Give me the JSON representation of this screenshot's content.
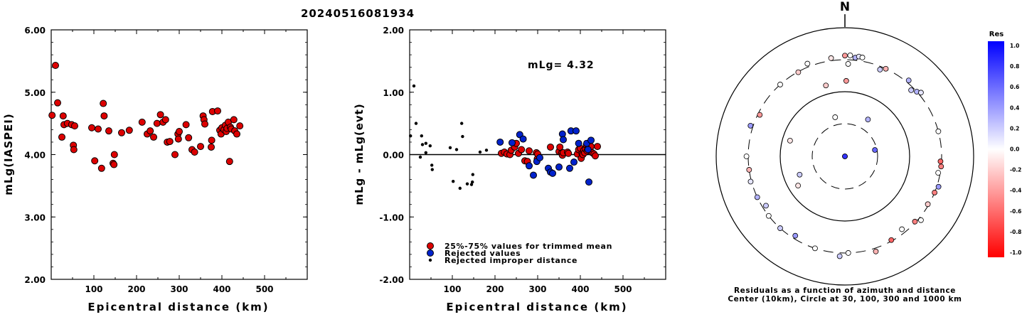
{
  "title": "20240516081934",
  "colors": {
    "red_dot": "#dd0000",
    "blue_dot": "#0022cc",
    "black_dot": "#000000"
  },
  "chart_data": [
    {
      "type": "scatter",
      "id": "left",
      "ylabel": "mLg(IASPEI)",
      "xlabel": "Epicentral distance (km)",
      "xlim": [
        0,
        600
      ],
      "ylim": [
        2.0,
        6.0
      ],
      "xticks": [
        "100",
        "200",
        "300",
        "400",
        "500"
      ],
      "yticks": [
        "2.00",
        "3.00",
        "4.00",
        "5.00",
        "6.00"
      ],
      "points": [
        [
          2,
          4.63
        ],
        [
          10,
          5.43
        ],
        [
          15,
          4.83
        ],
        [
          25,
          4.28
        ],
        [
          28,
          4.62
        ],
        [
          30,
          4.48
        ],
        [
          38,
          4.5
        ],
        [
          48,
          4.48
        ],
        [
          52,
          4.15
        ],
        [
          53,
          4.08
        ],
        [
          55,
          4.46
        ],
        [
          95,
          4.43
        ],
        [
          102,
          3.9
        ],
        [
          110,
          4.41
        ],
        [
          118,
          3.78
        ],
        [
          122,
          4.82
        ],
        [
          124,
          4.62
        ],
        [
          135,
          4.38
        ],
        [
          145,
          3.86
        ],
        [
          147,
          3.84
        ],
        [
          148,
          4.0
        ],
        [
          165,
          4.35
        ],
        [
          183,
          4.39
        ],
        [
          213,
          4.52
        ],
        [
          225,
          4.33
        ],
        [
          232,
          4.38
        ],
        [
          240,
          4.28
        ],
        [
          248,
          4.5
        ],
        [
          256,
          4.64
        ],
        [
          262,
          4.52
        ],
        [
          268,
          4.56
        ],
        [
          272,
          4.2
        ],
        [
          278,
          4.21
        ],
        [
          290,
          4.0
        ],
        [
          297,
          4.33
        ],
        [
          298,
          4.25
        ],
        [
          300,
          4.37
        ],
        [
          316,
          4.48
        ],
        [
          322,
          4.27
        ],
        [
          330,
          4.08
        ],
        [
          336,
          4.04
        ],
        [
          350,
          4.13
        ],
        [
          356,
          4.62
        ],
        [
          358,
          4.56
        ],
        [
          360,
          4.49
        ],
        [
          375,
          4.12
        ],
        [
          376,
          4.23
        ],
        [
          378,
          4.69
        ],
        [
          390,
          4.7
        ],
        [
          395,
          4.39
        ],
        [
          398,
          4.33
        ],
        [
          400,
          4.43
        ],
        [
          405,
          4.4
        ],
        [
          408,
          4.47
        ],
        [
          410,
          4.37
        ],
        [
          412,
          4.42
        ],
        [
          415,
          4.52
        ],
        [
          418,
          3.89
        ],
        [
          420,
          4.44
        ],
        [
          422,
          4.41
        ],
        [
          428,
          4.56
        ],
        [
          430,
          4.38
        ],
        [
          435,
          4.33
        ],
        [
          442,
          4.46
        ]
      ]
    },
    {
      "type": "scatter",
      "id": "middle",
      "ylabel": "mLg - mLg(evt)",
      "xlabel": "Epicentral distance (km)",
      "xlim": [
        0,
        600
      ],
      "ylim": [
        -2.0,
        2.0
      ],
      "xticks": [
        "100",
        "200",
        "300",
        "400",
        "500"
      ],
      "yticks": [
        "-2.00",
        "-1.00",
        "0.00",
        "1.00",
        "2.00"
      ],
      "annotation": "mLg= 4.32",
      "legend": [
        {
          "label": "25%-75% values for trimmed mean",
          "color": "red"
        },
        {
          "label": "Rejected values",
          "color": "blue"
        },
        {
          "label": "Rejected improper distance",
          "color": "black"
        }
      ],
      "red": [
        [
          215,
          0.02
        ],
        [
          222,
          0.04
        ],
        [
          228,
          0.01
        ],
        [
          235,
          0.0
        ],
        [
          238,
          0.07
        ],
        [
          246,
          0.12
        ],
        [
          250,
          0.18
        ],
        [
          255,
          0.02
        ],
        [
          262,
          0.08
        ],
        [
          270,
          -0.1
        ],
        [
          276,
          -0.11
        ],
        [
          280,
          0.06
        ],
        [
          297,
          0.03
        ],
        [
          299,
          -0.07
        ],
        [
          300,
          0.01
        ],
        [
          330,
          0.12
        ],
        [
          350,
          0.05
        ],
        [
          352,
          0.12
        ],
        [
          356,
          0.02
        ],
        [
          358,
          -0.01
        ],
        [
          360,
          0.03
        ],
        [
          370,
          0.04
        ],
        [
          372,
          0.02
        ],
        [
          393,
          0.01
        ],
        [
          396,
          0.08
        ],
        [
          400,
          0.1
        ],
        [
          402,
          -0.06
        ],
        [
          404,
          0.02
        ],
        [
          406,
          0.0
        ],
        [
          408,
          0.07
        ],
        [
          410,
          0.03
        ],
        [
          412,
          0.09
        ],
        [
          414,
          0.15
        ],
        [
          416,
          0.06
        ],
        [
          418,
          0.11
        ],
        [
          420,
          0.08
        ],
        [
          425,
          0.13
        ],
        [
          428,
          0.03
        ],
        [
          432,
          0.01
        ],
        [
          435,
          -0.02
        ],
        [
          440,
          0.13
        ]
      ],
      "blue": [
        [
          212,
          0.2
        ],
        [
          240,
          0.19
        ],
        [
          258,
          0.32
        ],
        [
          266,
          0.25
        ],
        [
          280,
          -0.18
        ],
        [
          290,
          -0.33
        ],
        [
          298,
          -0.11
        ],
        [
          305,
          -0.05
        ],
        [
          325,
          -0.22
        ],
        [
          330,
          -0.28
        ],
        [
          335,
          -0.3
        ],
        [
          350,
          -0.2
        ],
        [
          358,
          0.33
        ],
        [
          360,
          0.24
        ],
        [
          375,
          -0.22
        ],
        [
          378,
          0.38
        ],
        [
          385,
          -0.12
        ],
        [
          390,
          0.38
        ],
        [
          396,
          0.18
        ],
        [
          415,
          0.18
        ],
        [
          418,
          0.08
        ],
        [
          420,
          -0.44
        ],
        [
          425,
          0.23
        ]
      ],
      "black": [
        [
          2,
          0.3
        ],
        [
          10,
          1.1
        ],
        [
          15,
          0.5
        ],
        [
          25,
          -0.04
        ],
        [
          28,
          0.3
        ],
        [
          30,
          0.16
        ],
        [
          38,
          0.18
        ],
        [
          38,
          0.03
        ],
        [
          48,
          0.14
        ],
        [
          52,
          -0.17
        ],
        [
          53,
          -0.24
        ],
        [
          95,
          0.11
        ],
        [
          102,
          -0.43
        ],
        [
          110,
          0.08
        ],
        [
          118,
          -0.54
        ],
        [
          122,
          0.5
        ],
        [
          124,
          0.29
        ],
        [
          135,
          -0.47
        ],
        [
          145,
          -0.48
        ],
        [
          147,
          -0.44
        ],
        [
          148,
          -0.32
        ],
        [
          165,
          0.04
        ],
        [
          180,
          0.07
        ]
      ]
    },
    {
      "type": "scatter",
      "id": "polar",
      "north_label": "N",
      "caption_line1": "Residuals as a function of azimuth and distance",
      "caption_line2": "Center (10km), Circle at 30, 100, 300 and 1000 km",
      "colorbar_title": "Res",
      "colorbar_ticks": [
        "1.0",
        "0.8",
        "0.6",
        "0.4",
        "0.2",
        "0.0",
        "-0.2",
        "-0.4",
        "-0.6",
        "-0.8",
        "-1.0"
      ],
      "stations": [
        {
          "azimuth_deg": 5,
          "distance_km": 10,
          "residual": 0.6
        },
        {
          "azimuth_deg": 15,
          "distance_km": 10,
          "residual": 0.8
        },
        {
          "azimuth_deg": 346,
          "distance_km": 40,
          "residual": 0.0
        },
        {
          "azimuth_deg": 32,
          "distance_km": 45,
          "residual": 0.3
        },
        {
          "azimuth_deg": 78,
          "distance_km": 28,
          "residual": 0.6
        },
        {
          "azimuth_deg": 248,
          "distance_km": 55,
          "residual": 0.2
        },
        {
          "azimuth_deg": 286,
          "distance_km": 75,
          "residual": -0.1
        },
        {
          "azimuth_deg": 238,
          "distance_km": 70,
          "residual": -0.1
        },
        {
          "azimuth_deg": 1,
          "distance_km": 145,
          "residual": -0.4
        },
        {
          "azimuth_deg": 345,
          "distance_km": 135,
          "residual": -0.2
        },
        {
          "azimuth_deg": 2,
          "distance_km": 260,
          "residual": 0.0
        },
        {
          "azimuth_deg": 6,
          "distance_km": 330,
          "residual": 0.3
        },
        {
          "azimuth_deg": 0,
          "distance_km": 350,
          "residual": -0.4
        },
        {
          "azimuth_deg": 3,
          "distance_km": 355,
          "residual": 0.0
        },
        {
          "azimuth_deg": 8,
          "distance_km": 350,
          "residual": 0.1
        },
        {
          "azimuth_deg": 10,
          "distance_km": 345,
          "residual": 0.0
        },
        {
          "azimuth_deg": 22,
          "distance_km": 270,
          "residual": 0.2
        },
        {
          "azimuth_deg": 25,
          "distance_km": 300,
          "residual": -0.3
        },
        {
          "azimuth_deg": 40,
          "distance_km": 330,
          "residual": 0.3
        },
        {
          "azimuth_deg": 48,
          "distance_km": 300,
          "residual": 0.3
        },
        {
          "azimuth_deg": 50,
          "distance_km": 330,
          "residual": 0.1
        },
        {
          "azimuth_deg": 45,
          "distance_km": 270,
          "residual": 0.2
        },
        {
          "azimuth_deg": 75,
          "distance_km": 300,
          "residual": 0.0
        },
        {
          "azimuth_deg": 93,
          "distance_km": 290,
          "residual": -0.6
        },
        {
          "azimuth_deg": 96,
          "distance_km": 300,
          "residual": -0.5
        },
        {
          "azimuth_deg": 100,
          "distance_km": 280,
          "residual": 0.0
        },
        {
          "azimuth_deg": 108,
          "distance_km": 320,
          "residual": 0.4
        },
        {
          "azimuth_deg": 112,
          "distance_km": 300,
          "residual": -0.5
        },
        {
          "azimuth_deg": 120,
          "distance_km": 290,
          "residual": -0.2
        },
        {
          "azimuth_deg": 130,
          "distance_km": 330,
          "residual": 0.0
        },
        {
          "azimuth_deg": 133,
          "distance_km": 290,
          "residual": -0.5
        },
        {
          "azimuth_deg": 142,
          "distance_km": 260,
          "residual": 0.0
        },
        {
          "azimuth_deg": 151,
          "distance_km": 290,
          "residual": -0.6
        },
        {
          "azimuth_deg": 162,
          "distance_km": 340,
          "residual": -0.3
        },
        {
          "azimuth_deg": 178,
          "distance_km": 300,
          "residual": 0.0
        },
        {
          "azimuth_deg": 183,
          "distance_km": 340,
          "residual": 0.2
        },
        {
          "azimuth_deg": 198,
          "distance_km": 300,
          "residual": 0.0
        },
        {
          "azimuth_deg": 212,
          "distance_km": 270,
          "residual": 0.4
        },
        {
          "azimuth_deg": 222,
          "distance_km": 300,
          "residual": 0.2
        },
        {
          "azimuth_deg": 232,
          "distance_km": 300,
          "residual": 0.0
        },
        {
          "azimuth_deg": 238,
          "distance_km": 265,
          "residual": 0.2
        },
        {
          "azimuth_deg": 245,
          "distance_km": 300,
          "residual": 0.3
        },
        {
          "azimuth_deg": 255,
          "distance_km": 310,
          "residual": 0.1
        },
        {
          "azimuth_deg": 262,
          "distance_km": 300,
          "residual": -0.3
        },
        {
          "azimuth_deg": 270,
          "distance_km": 320,
          "residual": 0.0
        },
        {
          "azimuth_deg": 288,
          "distance_km": 330,
          "residual": 0.4
        },
        {
          "azimuth_deg": 296,
          "distance_km": 280,
          "residual": -0.4
        },
        {
          "azimuth_deg": 318,
          "distance_km": 300,
          "residual": 0.0
        },
        {
          "azimuth_deg": 331,
          "distance_km": 295,
          "residual": -0.2
        },
        {
          "azimuth_deg": 338,
          "distance_km": 340,
          "residual": 0.0
        },
        {
          "azimuth_deg": 352,
          "distance_km": 330,
          "residual": -0.1
        }
      ]
    }
  ]
}
